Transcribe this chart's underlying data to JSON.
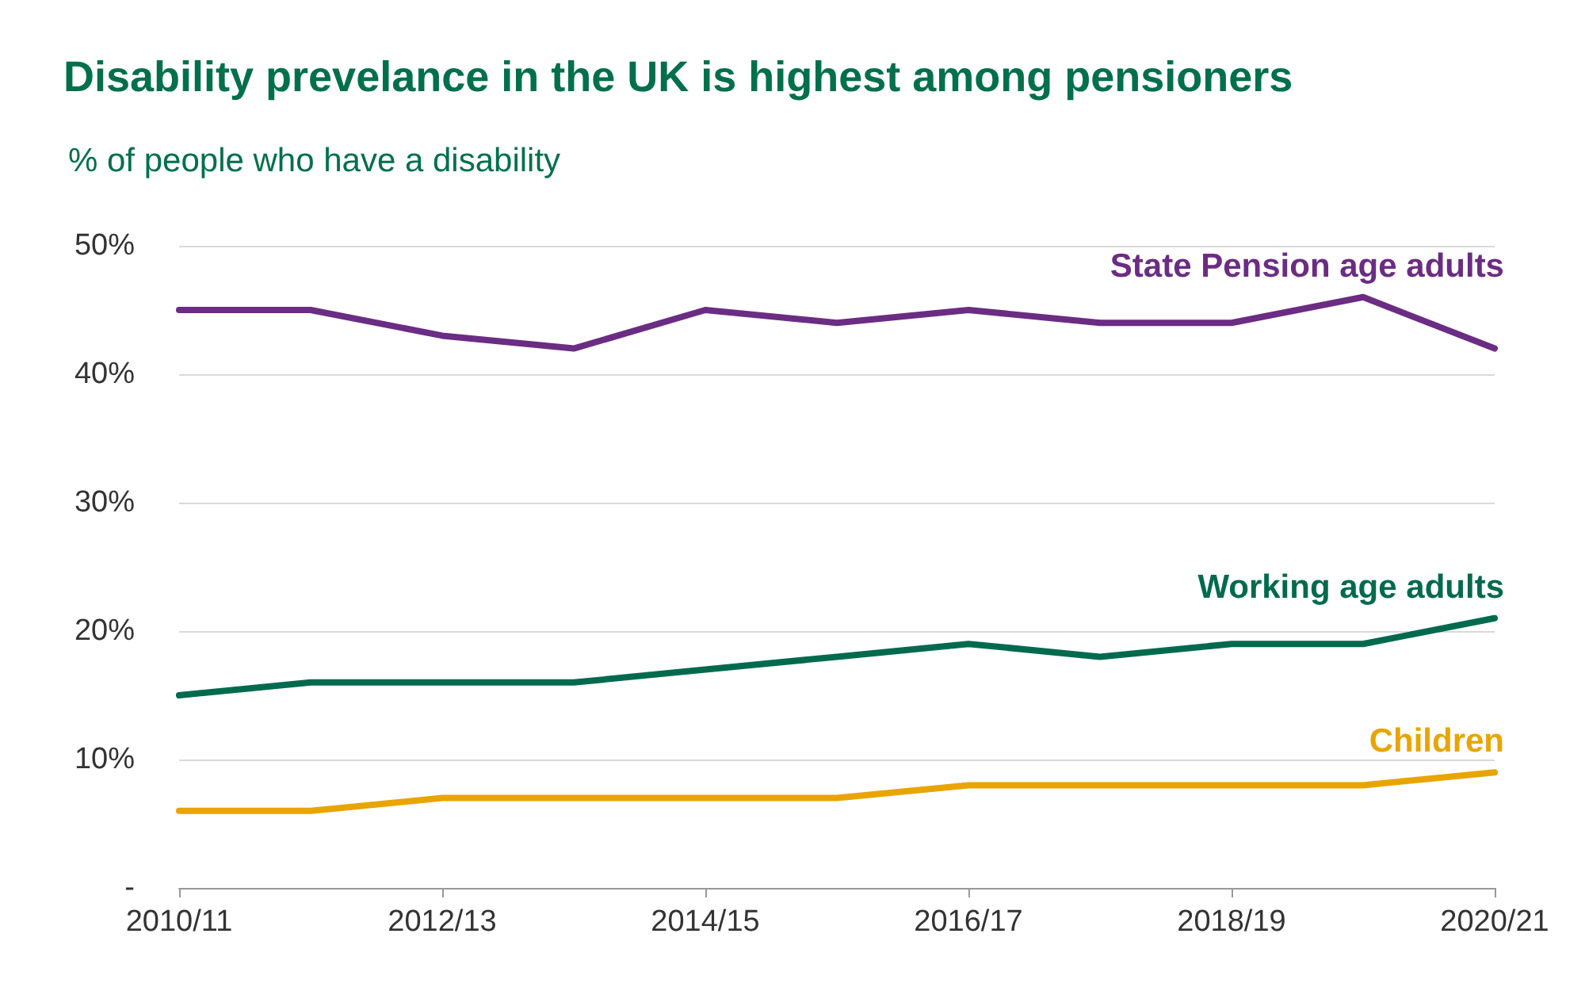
{
  "chart_data": {
    "type": "line",
    "title": "Disability prevelance in the UK is highest among pensioners",
    "subtitle": "% of people who have a disability",
    "categories": [
      "2010/11",
      null,
      "2012/13",
      null,
      "2014/15",
      null,
      "2016/17",
      null,
      "2018/19",
      null,
      "2020/21"
    ],
    "series": [
      {
        "name": "State Pension age adults",
        "color": "#6b2c83",
        "values": [
          45,
          45,
          43,
          42,
          45,
          44,
          45,
          44,
          44,
          46,
          42
        ]
      },
      {
        "name": "Working age adults",
        "color": "#006a4e",
        "values": [
          15,
          16,
          16,
          16,
          17,
          18,
          19,
          18,
          19,
          19,
          21
        ]
      },
      {
        "name": "Children",
        "color": "#e8a500",
        "values": [
          6,
          6,
          7,
          7,
          7,
          7,
          8,
          8,
          8,
          8,
          9
        ]
      }
    ],
    "ylim": [
      0,
      50
    ],
    "yticks": [
      {
        "value": 0,
        "label": "-"
      },
      {
        "value": 10,
        "label": "10%"
      },
      {
        "value": 20,
        "label": "20%"
      },
      {
        "value": 30,
        "label": "30%"
      },
      {
        "value": 40,
        "label": "40%"
      },
      {
        "value": 50,
        "label": "50%"
      }
    ],
    "grid": "y",
    "legend": false,
    "marker": "none",
    "line_style": "solid"
  }
}
